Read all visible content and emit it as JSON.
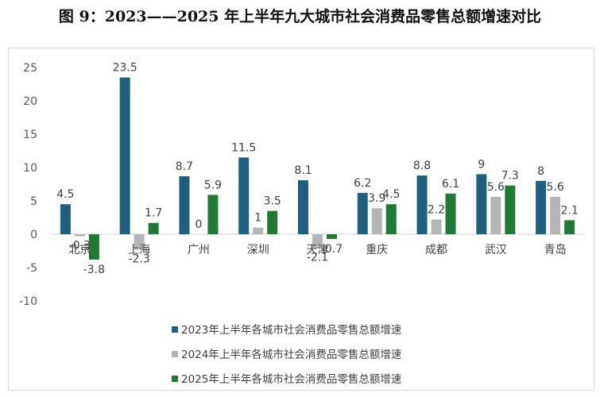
{
  "title": "图 9：2023——2025 年上半年九大城市社会消费品零售总额增速对比",
  "chart_data": {
    "type": "bar",
    "title": "图 9：2023——2025 年上半年九大城市社会消费品零售总额增速对比",
    "categories": [
      "北京",
      "上海",
      "广州",
      "深圳",
      "天津",
      "重庆",
      "成都",
      "武汉",
      "青岛"
    ],
    "series": [
      {
        "name": "2023年上半年各城市社会消费品零售总额增速",
        "color": "#1f5f7f",
        "values": [
          4.5,
          23.5,
          8.7,
          11.5,
          8.1,
          6.2,
          8.8,
          9,
          8
        ],
        "labels": [
          "4.5",
          "23.5",
          "8.7",
          "11.5",
          "8.1",
          "6.2",
          "8.8",
          "9",
          "8"
        ]
      },
      {
        "name": "2024年上半年各城市社会消费品零售总额增速",
        "color": "#b5b5b5",
        "values": [
          -0.3,
          -2.3,
          0,
          1,
          -2.1,
          3.9,
          2.2,
          5.6,
          5.6
        ],
        "labels": [
          "-0.3",
          "-2.3",
          "0",
          "1",
          "-2.1",
          "3.9",
          "2.2",
          "5.6",
          "5.6"
        ]
      },
      {
        "name": "2025年上半年各城市社会消费品零售总额增速",
        "color": "#1f7a35",
        "values": [
          -3.8,
          1.7,
          5.9,
          3.5,
          -0.7,
          4.5,
          6.1,
          7.3,
          2.1
        ],
        "labels": [
          "-3.8",
          "1.7",
          "5.9",
          "3.5",
          "-0.7",
          "4.5",
          "6.1",
          "7.3",
          "2.1"
        ]
      }
    ],
    "ylim": [
      -10,
      25
    ],
    "yticks": [
      -10,
      -5,
      0,
      5,
      10,
      15,
      20,
      25
    ],
    "xlabel": "",
    "ylabel": "",
    "grid": false,
    "legend_position": "bottom"
  }
}
